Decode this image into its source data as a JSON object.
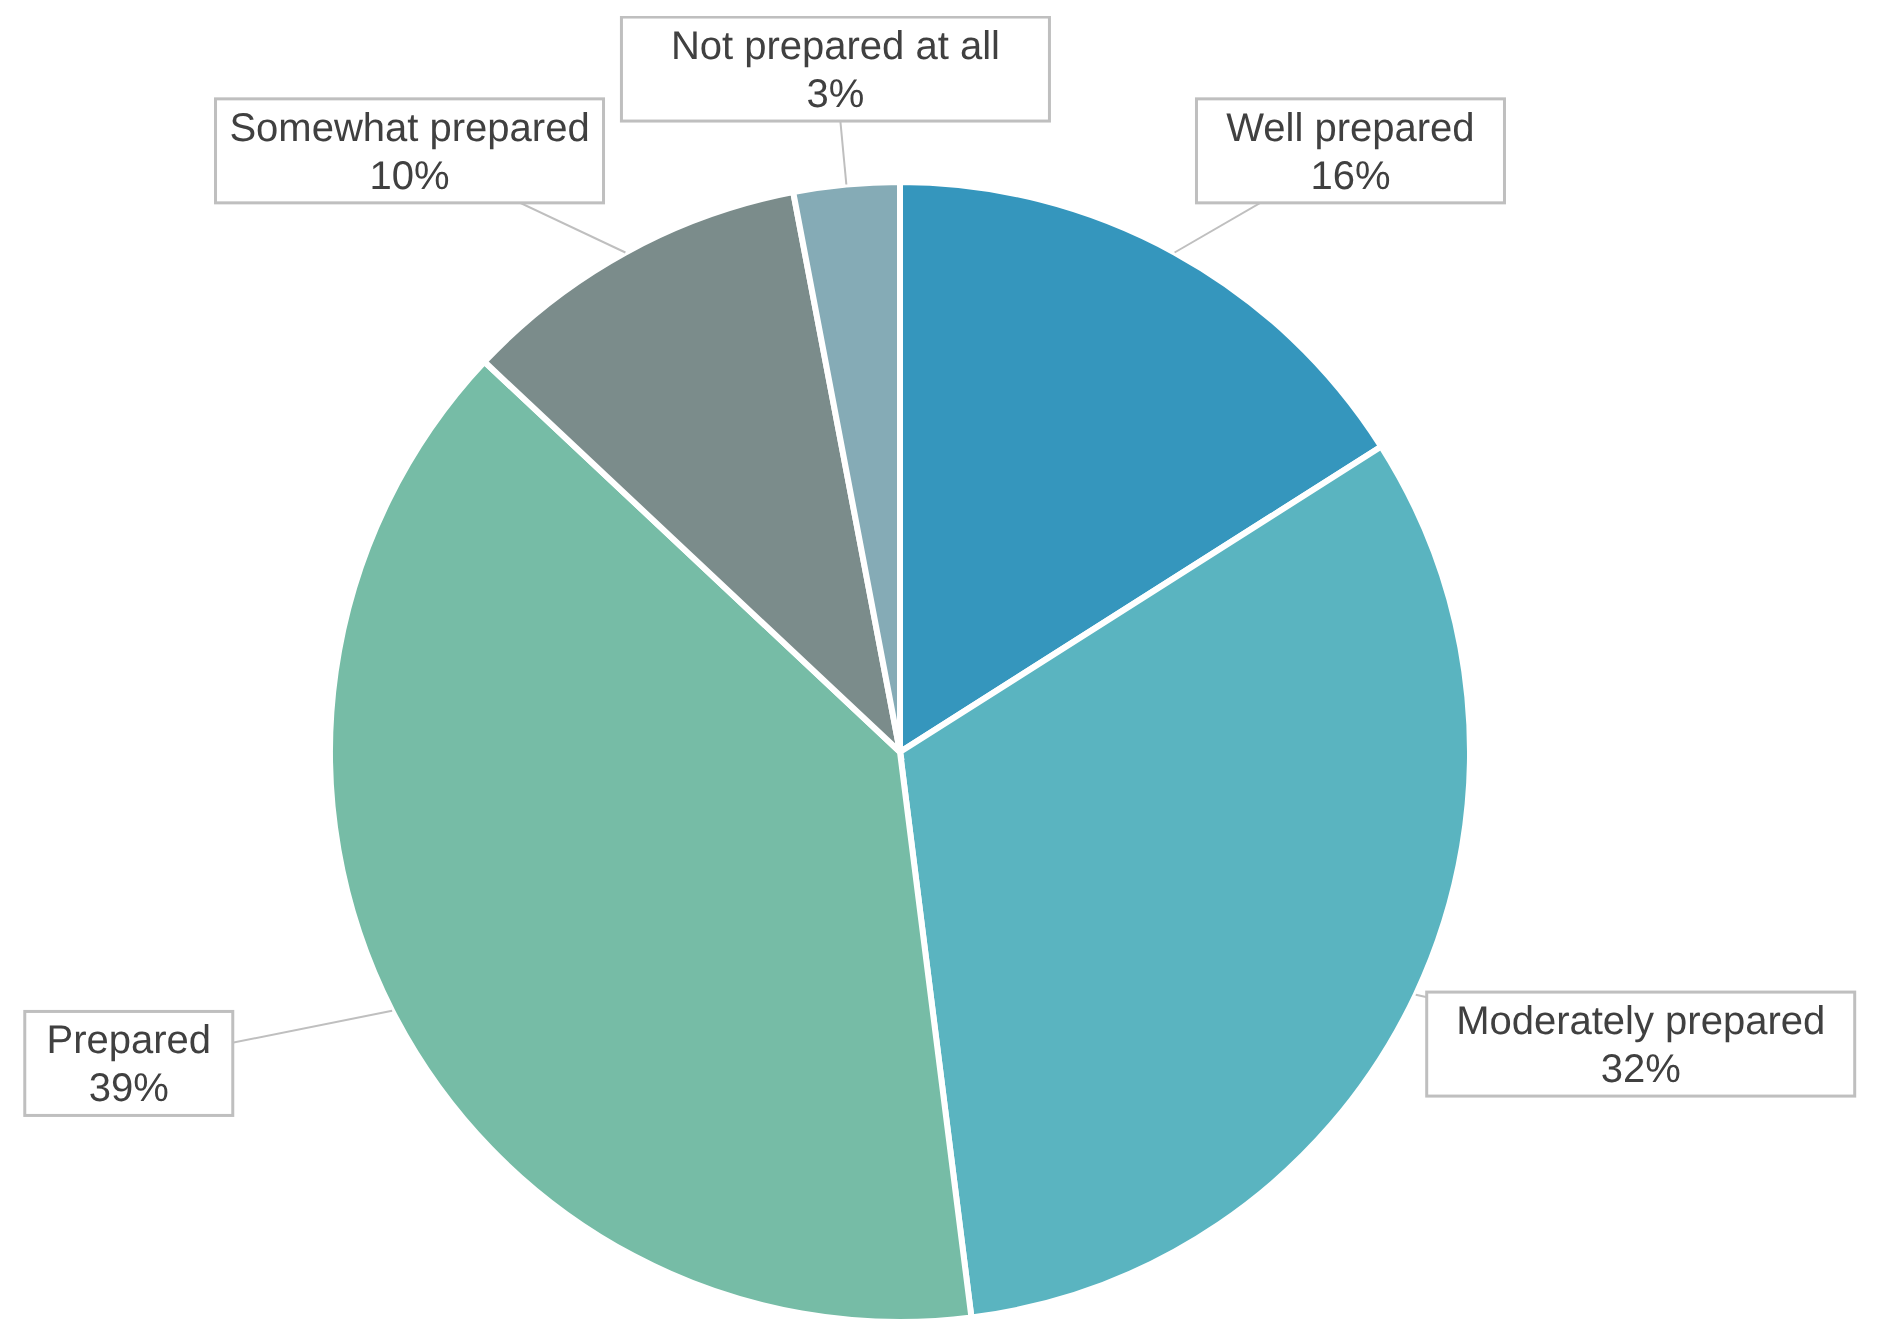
{
  "chart_data": {
    "type": "pie",
    "categories": [
      "Well prepared",
      "Moderately prepared",
      "Prepared",
      "Somewhat prepared",
      "Not prepared at all"
    ],
    "values": [
      16,
      32,
      39,
      10,
      3
    ],
    "value_labels": [
      "16%",
      "32%",
      "39%",
      "10%",
      "3%"
    ],
    "colors": [
      "#3596bd",
      "#5ab4c0",
      "#76bca6",
      "#7b8c8b",
      "#85abb6"
    ],
    "legend": false
  }
}
